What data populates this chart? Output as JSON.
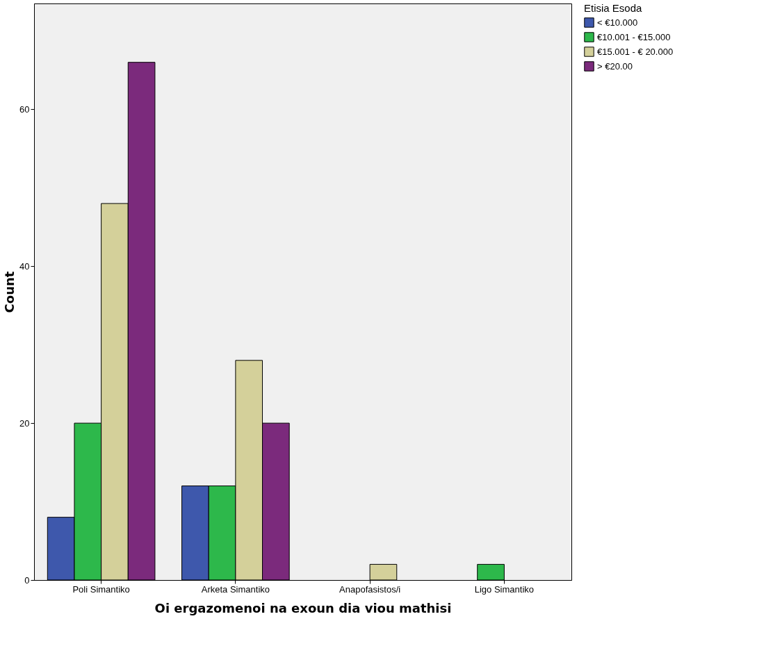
{
  "chart_data": {
    "type": "bar",
    "xlabel": "Oi ergazomenoi na exoun dia viou mathisi",
    "ylabel": "Count",
    "legend_title": "Etisia Esoda",
    "legend": "right",
    "grid": false,
    "categories": [
      "Poli Simantiko",
      "Arketa Simantiko",
      "Anapofasistos/i",
      "Ligo Simantiko"
    ],
    "series": [
      {
        "name": "<  €10.000",
        "color": "#3e58ac",
        "values": [
          8,
          12,
          null,
          null
        ]
      },
      {
        "name": "€10.001 - €15.000",
        "color": "#2db84b",
        "values": [
          20,
          12,
          null,
          2
        ]
      },
      {
        "name": "€15.001 - € 20.000",
        "color": "#d4d09a",
        "values": [
          48,
          28,
          2,
          null
        ]
      },
      {
        "name": "> €20.00",
        "color": "#7b2a7c",
        "values": [
          66,
          20,
          null,
          null
        ]
      }
    ],
    "ylim": [
      0,
      73.5
    ],
    "yticks": [
      0,
      20,
      40,
      60
    ]
  }
}
